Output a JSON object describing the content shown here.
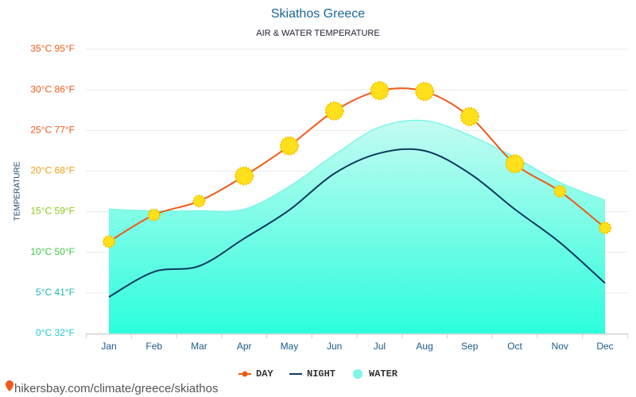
{
  "chart_data": {
    "type": "line",
    "title": "Skiathos Greece",
    "subtitle": "AIR & WATER TEMPERATURE",
    "y_label": "TEMPERATURE",
    "categories": [
      "Jan",
      "Feb",
      "Mar",
      "Apr",
      "May",
      "Jun",
      "Jul",
      "Aug",
      "Sep",
      "Oct",
      "Nov",
      "Dec"
    ],
    "series": [
      {
        "name": "DAY",
        "color": "#f05a19",
        "values": [
          11.3,
          14.6,
          16.3,
          19.4,
          23.1,
          27.4,
          29.9,
          29.8,
          26.7,
          20.9,
          17.5,
          13.0
        ]
      },
      {
        "name": "NIGHT",
        "color": "#0d3a5c",
        "values": [
          4.5,
          7.6,
          8.3,
          11.7,
          15.2,
          19.7,
          22.2,
          22.5,
          19.7,
          15.3,
          11.2,
          6.2
        ]
      },
      {
        "name": "WATER",
        "color": "#7ef5e6",
        "values": [
          15.3,
          15.1,
          15.1,
          15.3,
          18.1,
          22.0,
          25.4,
          26.2,
          24.4,
          21.7,
          18.6,
          16.4
        ]
      }
    ],
    "ylim": [
      0,
      35
    ],
    "yticks": [
      {
        "value": 0,
        "label": "0°C 32°F"
      },
      {
        "value": 5,
        "label": "5°C 41°F"
      },
      {
        "value": 10,
        "label": "10°C 50°F"
      },
      {
        "value": 15,
        "label": "15°C 59°F"
      },
      {
        "value": 20,
        "label": "20°C 68°F"
      },
      {
        "value": 25,
        "label": "25°C 77°F"
      },
      {
        "value": 30,
        "label": "30°C 86°F"
      },
      {
        "value": 35,
        "label": "35°C 95°F"
      }
    ],
    "ytick_colors": [
      "#1ec8d2",
      "#19b9b4",
      "#3cc83c",
      "#8cc814",
      "#f0a014",
      "#f05a19",
      "#f05a19",
      "#f05a19"
    ],
    "grid": true,
    "source": "hikersbay.com/climate/greece/skiathos"
  }
}
